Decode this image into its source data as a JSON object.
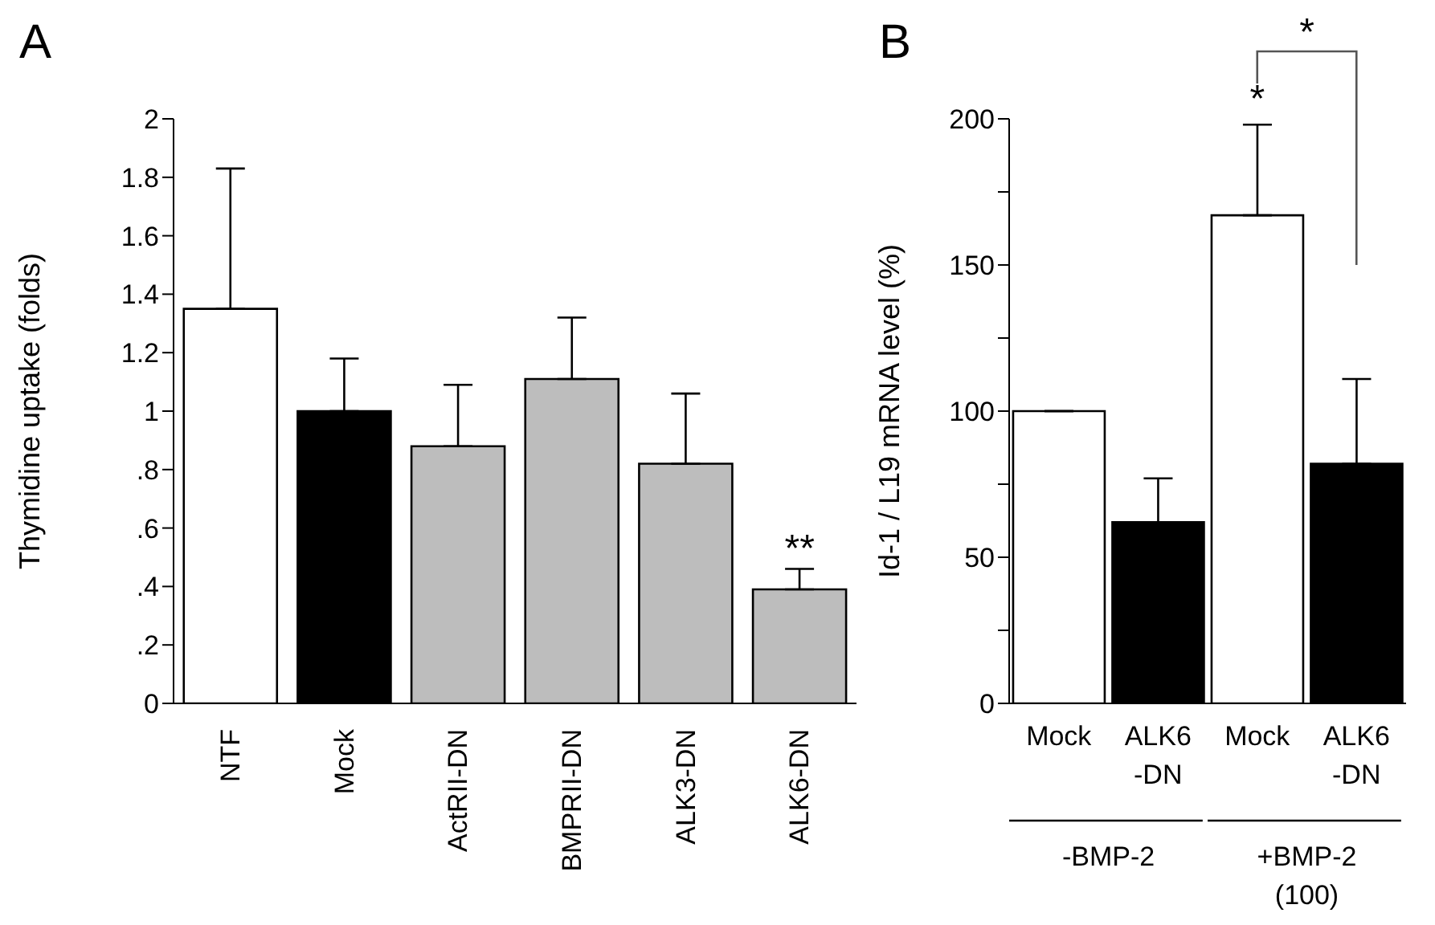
{
  "chart_data": [
    {
      "type": "bar",
      "title": "A",
      "ylabel": "Thymidine uptake (folds)",
      "categories": [
        "NTF",
        "Mock",
        "ActRII-DN",
        "BMPRII-DN",
        "ALK3-DN",
        "ALK6-DN"
      ],
      "values": [
        1.35,
        1.0,
        0.88,
        1.11,
        0.82,
        0.39
      ],
      "errors": [
        0.48,
        0.18,
        0.21,
        0.21,
        0.24,
        0.07
      ],
      "colors": [
        "#ffffff",
        "#000000",
        "#bdbdbd",
        "#bdbdbd",
        "#bdbdbd",
        "#bdbdbd"
      ],
      "ylim": [
        0,
        2
      ],
      "yticks": [
        0,
        {
          "value": 0.2,
          "label": ".2"
        },
        {
          "value": 0.4,
          "label": ".4"
        },
        {
          "value": 0.6,
          "label": ".6"
        },
        {
          "value": 0.8,
          "label": ".8"
        },
        1,
        1.2,
        1.4,
        1.6,
        1.8,
        2
      ],
      "annotations": [
        {
          "text": "**",
          "x": "ALK6-DN",
          "y": 0.46
        }
      ],
      "grid": false,
      "legend": false
    },
    {
      "type": "bar",
      "title": "B",
      "ylabel": "Id-1 / L19 mRNA level (%)",
      "categories": [
        "Mock",
        "ALK6 -DN",
        "Mock",
        "ALK6 -DN"
      ],
      "values": [
        100,
        62,
        167,
        82
      ],
      "errors": [
        null,
        15,
        31,
        29
      ],
      "colors": [
        "#ffffff",
        "#000000",
        "#ffffff",
        "#000000"
      ],
      "ylim": [
        0,
        200
      ],
      "yticks": [
        0,
        {
          "value": 25,
          "label": null
        },
        50,
        {
          "value": 75,
          "label": null
        },
        100,
        {
          "value": 125,
          "label": null
        },
        150,
        {
          "value": 175,
          "label": null
        },
        200
      ],
      "annotations": [
        "*",
        "*",
        "-BMP-2",
        "+BMP-2 (100)"
      ],
      "grid": false,
      "legend": false
    }
  ]
}
